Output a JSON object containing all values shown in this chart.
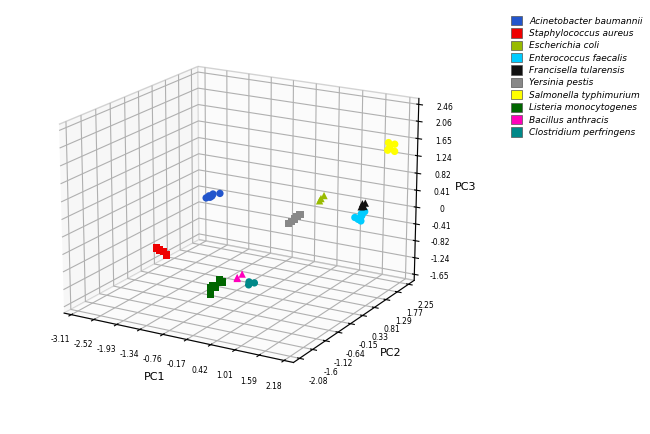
{
  "species": [
    {
      "name": "Acinetobacter baumannii",
      "color": "#2255CC",
      "marker": "o",
      "points": [
        [
          -2.52,
          1.8,
          -0.3
        ],
        [
          -2.3,
          1.6,
          -0.2
        ],
        [
          -2.2,
          1.5,
          -0.1
        ],
        [
          -2.42,
          1.55,
          -0.25
        ],
        [
          -1.93,
          1.38,
          0.0
        ],
        [
          -2.6,
          1.95,
          -0.4
        ]
      ]
    },
    {
      "name": "Staphylococcus aureus",
      "color": "#EE0000",
      "marker": "s",
      "points": [
        [
          -3.11,
          0.65,
          -1.3
        ],
        [
          -2.9,
          0.62,
          -1.35
        ],
        [
          -2.8,
          0.58,
          -1.4
        ],
        [
          -3.0,
          0.6,
          -1.32
        ]
      ]
    },
    {
      "name": "Escherichia coli",
      "color": "#99BB00",
      "marker": "^",
      "points": [
        [
          1.01,
          0.81,
          0.5
        ],
        [
          1.1,
          0.72,
          0.6
        ],
        [
          1.2,
          0.68,
          0.7
        ]
      ]
    },
    {
      "name": "Enterococcus faecalis",
      "color": "#00CCFF",
      "marker": "o",
      "points": [
        [
          1.01,
          2.4,
          -0.5
        ],
        [
          1.1,
          2.38,
          -0.4
        ],
        [
          1.18,
          2.28,
          -0.3
        ],
        [
          1.28,
          2.22,
          -0.2
        ],
        [
          1.15,
          2.32,
          -0.35
        ],
        [
          1.05,
          2.45,
          -0.55
        ],
        [
          0.95,
          2.36,
          -0.45
        ],
        [
          1.22,
          2.18,
          -0.25
        ]
      ]
    },
    {
      "name": "Francisella tularensis",
      "color": "#111111",
      "marker": "^",
      "points": [
        [
          1.59,
          1.55,
          0.2
        ],
        [
          1.65,
          1.5,
          0.3
        ],
        [
          1.7,
          1.48,
          0.25
        ],
        [
          1.75,
          1.45,
          0.35
        ]
      ]
    },
    {
      "name": "Yersinia pestis",
      "color": "#888888",
      "marker": "s",
      "points": [
        [
          1.59,
          -1.28,
          0.8
        ],
        [
          1.7,
          -1.22,
          0.9
        ],
        [
          1.8,
          -1.18,
          1.0
        ],
        [
          1.65,
          -1.25,
          0.85
        ],
        [
          1.75,
          -1.2,
          0.95
        ]
      ]
    },
    {
      "name": "Salmonella typhimurium",
      "color": "#FFFF00",
      "marker": "o",
      "points": [
        [
          2.18,
          1.9,
          1.5
        ],
        [
          2.1,
          1.82,
          1.6
        ],
        [
          2.05,
          1.86,
          1.7
        ],
        [
          2.08,
          1.78,
          1.55
        ],
        [
          2.15,
          1.95,
          1.65
        ]
      ]
    },
    {
      "name": "Listeria monocytogenes",
      "color": "#006600",
      "marker": "s",
      "points": [
        [
          0.42,
          -2.3,
          -0.5
        ],
        [
          0.52,
          -2.35,
          -0.4
        ],
        [
          0.6,
          -2.25,
          -0.3
        ],
        [
          0.48,
          -2.38,
          -0.6
        ],
        [
          0.64,
          -2.22,
          -0.35
        ],
        [
          0.55,
          -2.32,
          -0.45
        ]
      ]
    },
    {
      "name": "Bacillus anthracis",
      "color": "#FF00BB",
      "marker": "^",
      "points": [
        [
          1.01,
          -2.22,
          -0.2
        ],
        [
          1.1,
          -2.18,
          -0.1
        ],
        [
          1.05,
          -2.28,
          -0.15
        ]
      ]
    },
    {
      "name": "Clostridium perfringens",
      "color": "#008888",
      "marker": "o",
      "points": [
        [
          1.01,
          -1.82,
          -0.5
        ],
        [
          1.06,
          -1.88,
          -0.4
        ],
        [
          1.12,
          -1.78,
          -0.45
        ]
      ]
    }
  ],
  "xlabel": "PC1",
  "ylabel": "PC2",
  "zlabel": "PC3",
  "pc1_ticks": [
    -3.11,
    -2.52,
    -1.93,
    -1.34,
    -0.76,
    -0.17,
    0.42,
    1.01,
    1.59,
    2.18
  ],
  "pc2_ticks": [
    -2.08,
    -1.6,
    -1.12,
    -0.64,
    -0.15,
    0.33,
    0.81,
    1.29,
    1.77,
    2.25
  ],
  "pc3_ticks": [
    -1.65,
    -1.24,
    -0.82,
    -0.41,
    0.0,
    0.41,
    0.82,
    1.24,
    1.65,
    2.06,
    2.46
  ],
  "elev": 18,
  "azim": -60,
  "background_color": "#ffffff"
}
